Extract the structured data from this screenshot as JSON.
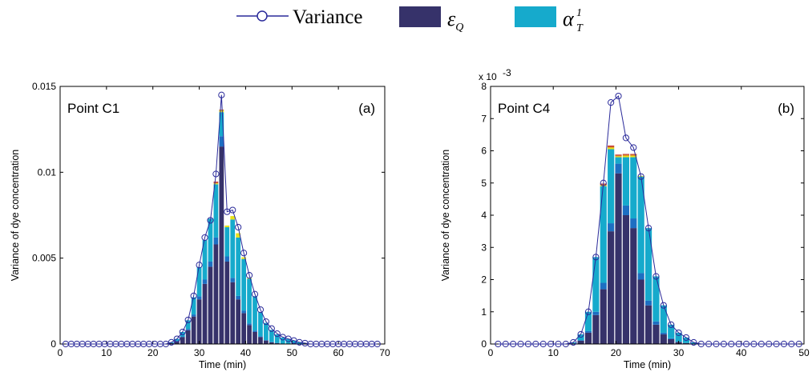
{
  "legend": {
    "placement": "top-center",
    "items": [
      {
        "label": "Variance",
        "type": "line-marker",
        "color": "#1f1f8f"
      },
      {
        "symbol": "ε",
        "subscript": "Q",
        "type": "patch",
        "color": "#36326a"
      },
      {
        "symbol": "α",
        "subscript": "T",
        "superscript": "1",
        "type": "patch",
        "color": "#16aacc"
      }
    ]
  },
  "colors": {
    "variance": "#2a2a9a",
    "epsilon_q": "#36326a",
    "alpha_t": "#16aacc",
    "mid_blue": "#1d6fc2",
    "yellow": "#e8e21a",
    "orange": "#d86d1a",
    "red": "#b91c1c"
  },
  "chart_data": [
    {
      "type": "bar",
      "stacked": true,
      "label": "Point C1",
      "panel": "(a)",
      "xlabel": "Time (min)",
      "ylabel": "Variance of dye concentration",
      "xlim": [
        0,
        70
      ],
      "ylim": [
        0,
        0.015
      ],
      "xticks": [
        "0",
        "10",
        "20",
        "30",
        "40",
        "50",
        "60",
        "70"
      ],
      "yticks": [
        "0",
        "0.005",
        "0.01",
        "0.015"
      ],
      "ytick_values": [
        0,
        0.005,
        0.01,
        0.015
      ],
      "bar_width": 1.2,
      "x": [
        1.2,
        2.4,
        3.6,
        4.8,
        6,
        7.2,
        8.4,
        9.6,
        10.8,
        12,
        13.2,
        14.4,
        15.6,
        16.8,
        18,
        19.2,
        20.4,
        21.6,
        22.8,
        24,
        25.2,
        26.4,
        27.6,
        28.8,
        30,
        31.2,
        32.4,
        33.6,
        34.8,
        36,
        37.2,
        38.4,
        39.6,
        40.8,
        42,
        43.2,
        44.4,
        45.6,
        46.8,
        48,
        49.2,
        50.4,
        51.6,
        52.8,
        54,
        55.2,
        56.4,
        57.6,
        58.8,
        60,
        61.2,
        62.4,
        63.6,
        64.8,
        66,
        67.2,
        68.4
      ],
      "variance": [
        0,
        0,
        0,
        0,
        0,
        0,
        0,
        0,
        0,
        0,
        0,
        0,
        0,
        0,
        0,
        0,
        0,
        0,
        0,
        0.0001,
        0.0003,
        0.0007,
        0.0014,
        0.0028,
        0.0046,
        0.0062,
        0.0072,
        0.0099,
        0.0145,
        0.0077,
        0.0078,
        0.0068,
        0.0053,
        0.004,
        0.0029,
        0.002,
        0.0013,
        0.0009,
        0.0006,
        0.0004,
        0.0003,
        0.0002,
        0.0001,
        5e-05,
        0,
        0,
        0,
        0,
        0,
        0,
        0,
        0,
        0,
        0,
        0,
        0,
        0
      ],
      "series": [
        {
          "name": "ε_Q",
          "key": "eps",
          "values": [
            0,
            0,
            0,
            0,
            0,
            0,
            0,
            0,
            0,
            0,
            0,
            0,
            0,
            0,
            0,
            0,
            0,
            0,
            0,
            5e-05,
            0.00015,
            0.0004,
            0.0008,
            0.0016,
            0.0026,
            0.0035,
            0.0045,
            0.0058,
            0.0115,
            0.0048,
            0.0036,
            0.0026,
            0.0018,
            0.0011,
            0.0007,
            0.0004,
            0.0002,
            0.0001,
            5e-05,
            2e-05,
            1e-05,
            0,
            0,
            0,
            0,
            0,
            0,
            0,
            0,
            0,
            0,
            0,
            0,
            0,
            0,
            0,
            0
          ]
        },
        {
          "name": "",
          "key": "mid",
          "values": [
            0,
            0,
            0,
            0,
            0,
            0,
            0,
            0,
            0,
            0,
            0,
            0,
            0,
            0,
            0,
            0,
            0,
            0,
            0,
            0,
            2e-05,
            4e-05,
            8e-05,
            0.00012,
            0.00018,
            0.00025,
            0.0003,
            0.0004,
            0.0006,
            0.0003,
            0.00025,
            0.0002,
            0.00015,
            0.0001,
            8e-05,
            5e-05,
            3e-05,
            2e-05,
            1e-05,
            0,
            0,
            0,
            0,
            0,
            0,
            0,
            0,
            0,
            0,
            0,
            0,
            0,
            0,
            0,
            0,
            0,
            0
          ]
        },
        {
          "name": "α_T^1",
          "key": "alpha",
          "values": [
            0,
            0,
            0,
            0,
            0,
            0,
            0,
            0,
            0,
            0,
            0,
            0,
            0,
            0,
            0,
            0,
            0,
            0,
            0,
            5e-05,
            0.00013,
            0.00026,
            0.0005,
            0.001,
            0.0017,
            0.0023,
            0.0025,
            0.0031,
            0.0014,
            0.0017,
            0.0034,
            0.0034,
            0.003,
            0.0026,
            0.002,
            0.0014,
            0.001,
            0.0007,
            0.0005,
            0.00035,
            0.00028,
            0.0002,
            0.0001,
            5e-05,
            0,
            0,
            0,
            0,
            0,
            0,
            0,
            0,
            0,
            0,
            0,
            0,
            0
          ]
        },
        {
          "name": "",
          "key": "yellow",
          "values": [
            0,
            0,
            0,
            0,
            0,
            0,
            0,
            0,
            0,
            0,
            0,
            0,
            0,
            0,
            0,
            0,
            0,
            0,
            0,
            0,
            0,
            0,
            0,
            0,
            0,
            0,
            0,
            5e-05,
            0.0001,
            0.0001,
            0.0002,
            0.00025,
            0.0001,
            5e-05,
            0,
            0,
            0,
            0,
            0,
            0,
            0,
            0,
            0,
            0,
            0,
            0,
            0,
            0,
            0,
            0,
            0,
            0,
            0,
            0,
            0,
            0,
            0
          ]
        },
        {
          "name": "",
          "key": "orange",
          "values": [
            0,
            0,
            0,
            0,
            0,
            0,
            0,
            0,
            0,
            0,
            0,
            0,
            0,
            0,
            0,
            0,
            0,
            0,
            0,
            0,
            0,
            0,
            0,
            0,
            0,
            0,
            0,
            5e-05,
            5e-05,
            0,
            0,
            0,
            0,
            0,
            0,
            0,
            0,
            0,
            0,
            0,
            0,
            0,
            0,
            0,
            0,
            0,
            0,
            0,
            0,
            0,
            0,
            0,
            0,
            0,
            0,
            0,
            0
          ]
        },
        {
          "name": "",
          "key": "red",
          "values": [
            0,
            0,
            0,
            0,
            0,
            0,
            0,
            0,
            0,
            0,
            0,
            0,
            0,
            0,
            0,
            0,
            0,
            0,
            0,
            0,
            0,
            0,
            0,
            0,
            0,
            0,
            0,
            5e-05,
            0,
            0,
            0,
            0,
            0,
            0,
            0,
            0,
            0,
            0,
            0,
            0,
            0,
            0,
            0,
            0,
            0,
            0,
            0,
            0,
            0,
            0,
            0,
            0,
            0,
            0,
            0,
            0,
            0
          ]
        }
      ]
    },
    {
      "type": "bar",
      "stacked": true,
      "label": "Point C4",
      "panel": "(b)",
      "xlabel": "Time (min)",
      "ylabel": "Variance of dye concentration",
      "multiplier": "x 10",
      "multiplier_exp": "-3",
      "xlim": [
        0,
        50
      ],
      "ylim": [
        0,
        8
      ],
      "xticks": [
        "0",
        "10",
        "20",
        "30",
        "40",
        "50"
      ],
      "yticks": [
        "0",
        "1",
        "2",
        "3",
        "4",
        "5",
        "6",
        "7",
        "8"
      ],
      "ytick_values": [
        0,
        1,
        2,
        3,
        4,
        5,
        6,
        7,
        8
      ],
      "bar_width": 1.2,
      "x": [
        1.2,
        2.4,
        3.6,
        4.8,
        6,
        7.2,
        8.4,
        9.6,
        10.8,
        12,
        13.2,
        14.4,
        15.6,
        16.8,
        18,
        19.2,
        20.4,
        21.6,
        22.8,
        24,
        25.2,
        26.4,
        27.6,
        28.8,
        30,
        31.2,
        32.4,
        33.6,
        34.8,
        36,
        37.2,
        38.4,
        39.6,
        40.8,
        42,
        43.2,
        44.4,
        45.6,
        46.8,
        48,
        49.2
      ],
      "variance": [
        0,
        0,
        0,
        0,
        0,
        0,
        0,
        0,
        0,
        0,
        0.05,
        0.3,
        1.0,
        2.7,
        5.0,
        7.5,
        7.7,
        6.4,
        6.1,
        5.2,
        3.6,
        2.1,
        1.2,
        0.6,
        0.35,
        0.2,
        0.05,
        0,
        0,
        0,
        0,
        0,
        0,
        0,
        0,
        0,
        0,
        0,
        0,
        0,
        0
      ],
      "series": [
        {
          "name": "ε_Q",
          "key": "eps",
          "values": [
            0,
            0,
            0,
            0,
            0,
            0,
            0,
            0,
            0,
            0,
            0.02,
            0.1,
            0.35,
            0.9,
            1.7,
            3.5,
            5.3,
            4.0,
            3.6,
            2.0,
            1.2,
            0.6,
            0.3,
            0.15,
            0.06,
            0.03,
            0.01,
            0,
            0,
            0,
            0,
            0,
            0,
            0,
            0,
            0,
            0,
            0,
            0,
            0,
            0
          ]
        },
        {
          "name": "",
          "key": "mid",
          "values": [
            0,
            0,
            0,
            0,
            0,
            0,
            0,
            0,
            0,
            0,
            0,
            0.02,
            0.05,
            0.1,
            0.2,
            0.25,
            0.3,
            0.3,
            0.3,
            0.2,
            0.15,
            0.1,
            0.05,
            0.03,
            0.01,
            0,
            0,
            0,
            0,
            0,
            0,
            0,
            0,
            0,
            0,
            0,
            0,
            0,
            0,
            0,
            0
          ]
        },
        {
          "name": "",
          "key": "alpha",
          "values": [
            0,
            0,
            0,
            0,
            0,
            0,
            0,
            0,
            0,
            0,
            0.03,
            0.18,
            0.6,
            1.7,
            3.0,
            2.3,
            0.2,
            1.5,
            1.9,
            3.0,
            2.25,
            1.4,
            0.85,
            0.42,
            0.28,
            0.17,
            0.04,
            0,
            0,
            0,
            0,
            0,
            0,
            0,
            0,
            0,
            0,
            0,
            0,
            0,
            0
          ]
        },
        {
          "name": "",
          "key": "yellow",
          "values": [
            0,
            0,
            0,
            0,
            0,
            0,
            0,
            0,
            0,
            0,
            0,
            0,
            0,
            0,
            0.03,
            0.05,
            0.03,
            0.05,
            0.05,
            0.02,
            0,
            0,
            0,
            0,
            0,
            0,
            0,
            0,
            0,
            0,
            0,
            0,
            0,
            0,
            0,
            0,
            0,
            0,
            0,
            0,
            0
          ]
        },
        {
          "name": "",
          "key": "orange",
          "values": [
            0,
            0,
            0,
            0,
            0,
            0,
            0,
            0,
            0,
            0,
            0,
            0,
            0,
            0,
            0.03,
            0.03,
            0.03,
            0.03,
            0.03,
            0,
            0,
            0,
            0,
            0,
            0,
            0,
            0,
            0,
            0,
            0,
            0,
            0,
            0,
            0,
            0,
            0,
            0,
            0,
            0,
            0,
            0
          ]
        },
        {
          "name": "",
          "key": "red",
          "values": [
            0,
            0,
            0,
            0,
            0,
            0,
            0,
            0,
            0,
            0,
            0,
            0,
            0,
            0,
            0.02,
            0.03,
            0.02,
            0.02,
            0.02,
            0,
            0,
            0,
            0,
            0,
            0,
            0,
            0,
            0,
            0,
            0,
            0,
            0,
            0,
            0,
            0,
            0,
            0,
            0,
            0,
            0,
            0
          ]
        }
      ]
    }
  ]
}
